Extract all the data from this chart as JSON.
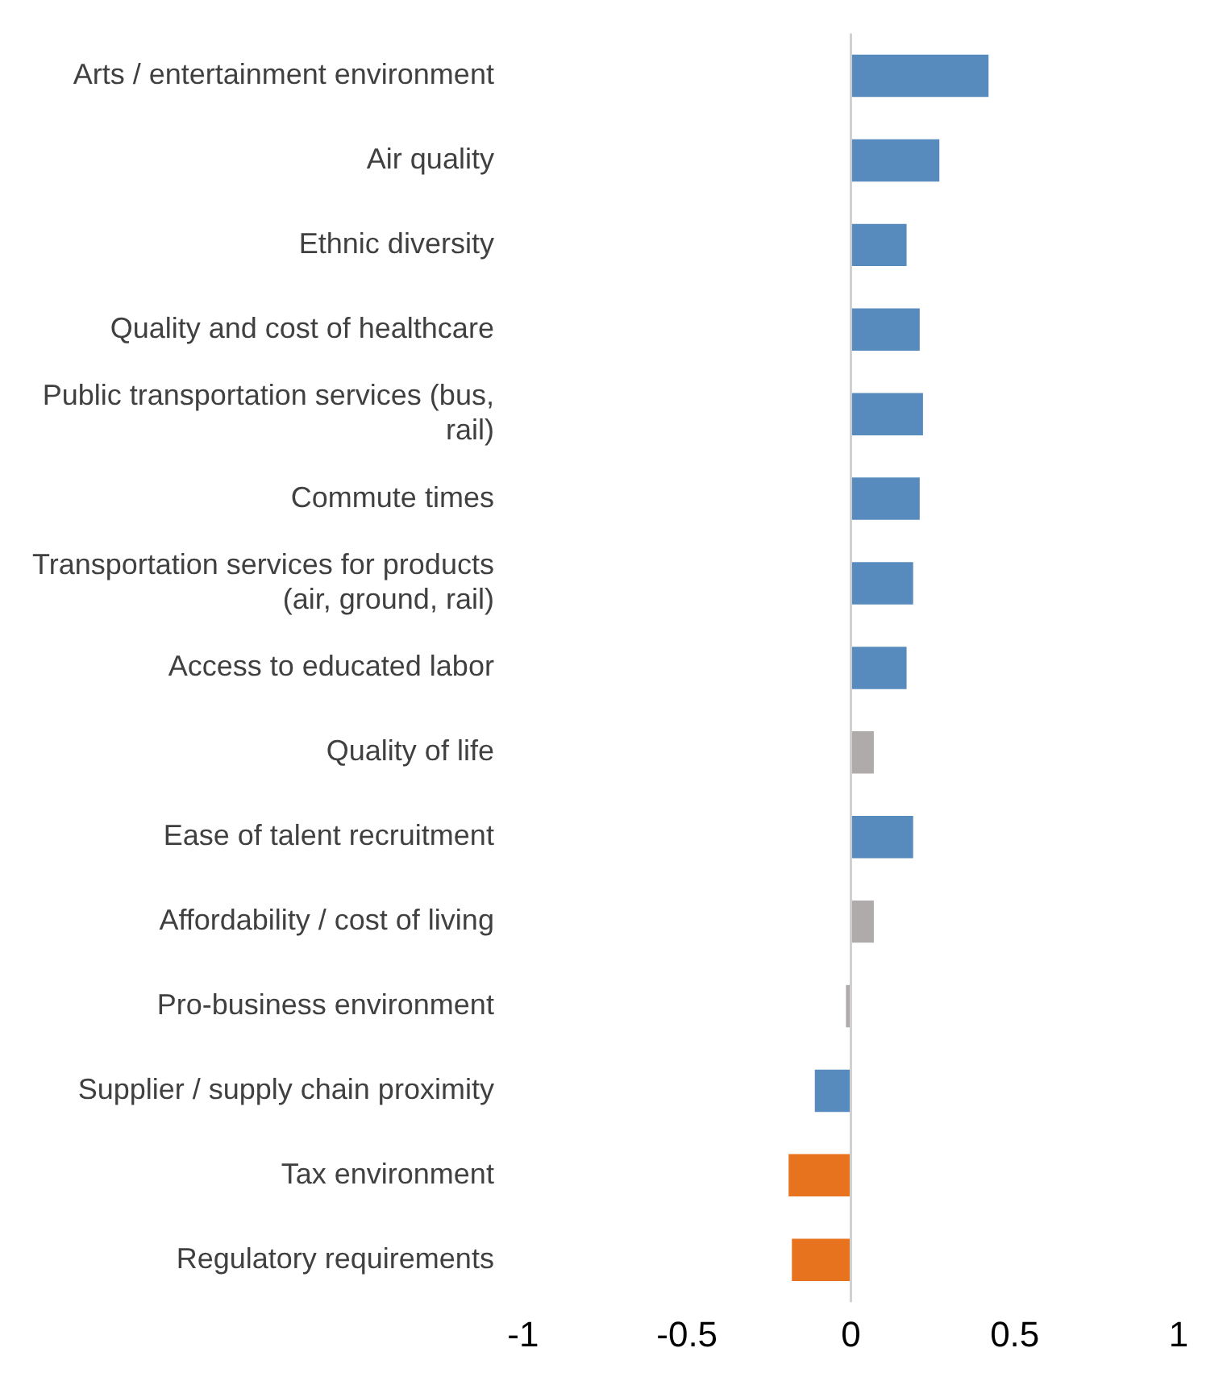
{
  "chart_data": {
    "type": "bar",
    "orientation": "horizontal",
    "categories": [
      "Arts / entertainment environment",
      "Air quality",
      "Ethnic diversity",
      "Quality and cost of healthcare",
      "Public transportation services (bus, rail)",
      "Commute times",
      "Transportation services for products (air, ground, rail)",
      "Access to educated labor",
      "Quality of life",
      "Ease of talent recruitment",
      "Affordability / cost of living",
      "Pro-business environment",
      "Supplier / supply chain proximity",
      "Tax environment",
      "Regulatory requirements"
    ],
    "values": [
      0.42,
      0.27,
      0.17,
      0.21,
      0.22,
      0.21,
      0.19,
      0.17,
      0.07,
      0.19,
      0.07,
      -0.015,
      -0.11,
      -0.19,
      -0.18
    ],
    "colors": [
      "#588bbd",
      "#588bbd",
      "#588bbd",
      "#588bbd",
      "#588bbd",
      "#588bbd",
      "#588bbd",
      "#588bbd",
      "#b0abab",
      "#588bbd",
      "#b0abab",
      "#b0abab",
      "#588bbd",
      "#e8731e",
      "#e8731e"
    ],
    "xlim": [
      -1,
      1
    ],
    "xticks": [
      -1,
      -0.5,
      0,
      0.5,
      1
    ],
    "ref_lines": [
      {
        "axis": "x",
        "value": 0,
        "color": "#d0d0d0"
      }
    ]
  }
}
